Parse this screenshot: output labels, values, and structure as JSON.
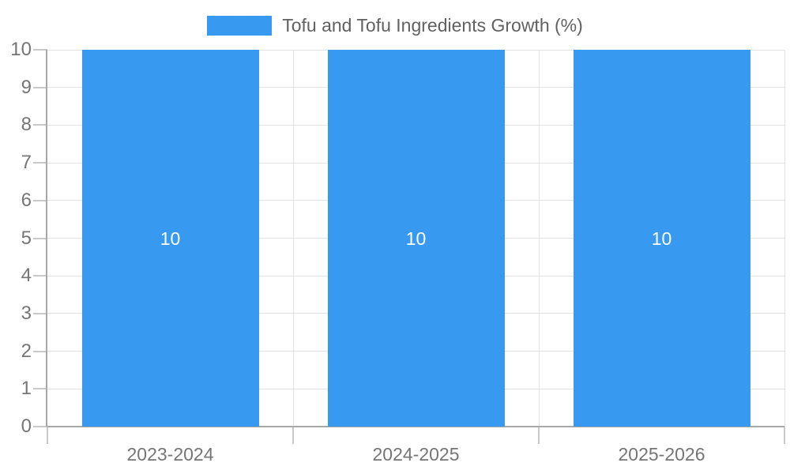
{
  "chart_data": {
    "type": "bar",
    "title": "Tofu and Tofu Ingredients Growth (%)",
    "categories": [
      "2023-2024",
      "2024-2025",
      "2025-2026"
    ],
    "values": [
      10,
      10,
      10
    ],
    "bar_labels": [
      "10",
      "10",
      "10"
    ],
    "xlabel": "",
    "ylabel": "",
    "ylim": [
      0,
      10
    ],
    "y_ticks": [
      0,
      1,
      2,
      3,
      4,
      5,
      6,
      7,
      8,
      9,
      10
    ],
    "grid": true,
    "legend_position": "top-center",
    "legend_entries": [
      "Tofu and Tofu Ingredients Growth (%)"
    ]
  },
  "colors": {
    "bar": "#3899F0",
    "grid": "#E2E2E2",
    "axis": "#A8A8A8",
    "tick": "#C9C9C9",
    "axis_label": "#757575",
    "title_text": "#616161",
    "bar_label": "#FFFFFF",
    "background": "#FFFFFF"
  }
}
